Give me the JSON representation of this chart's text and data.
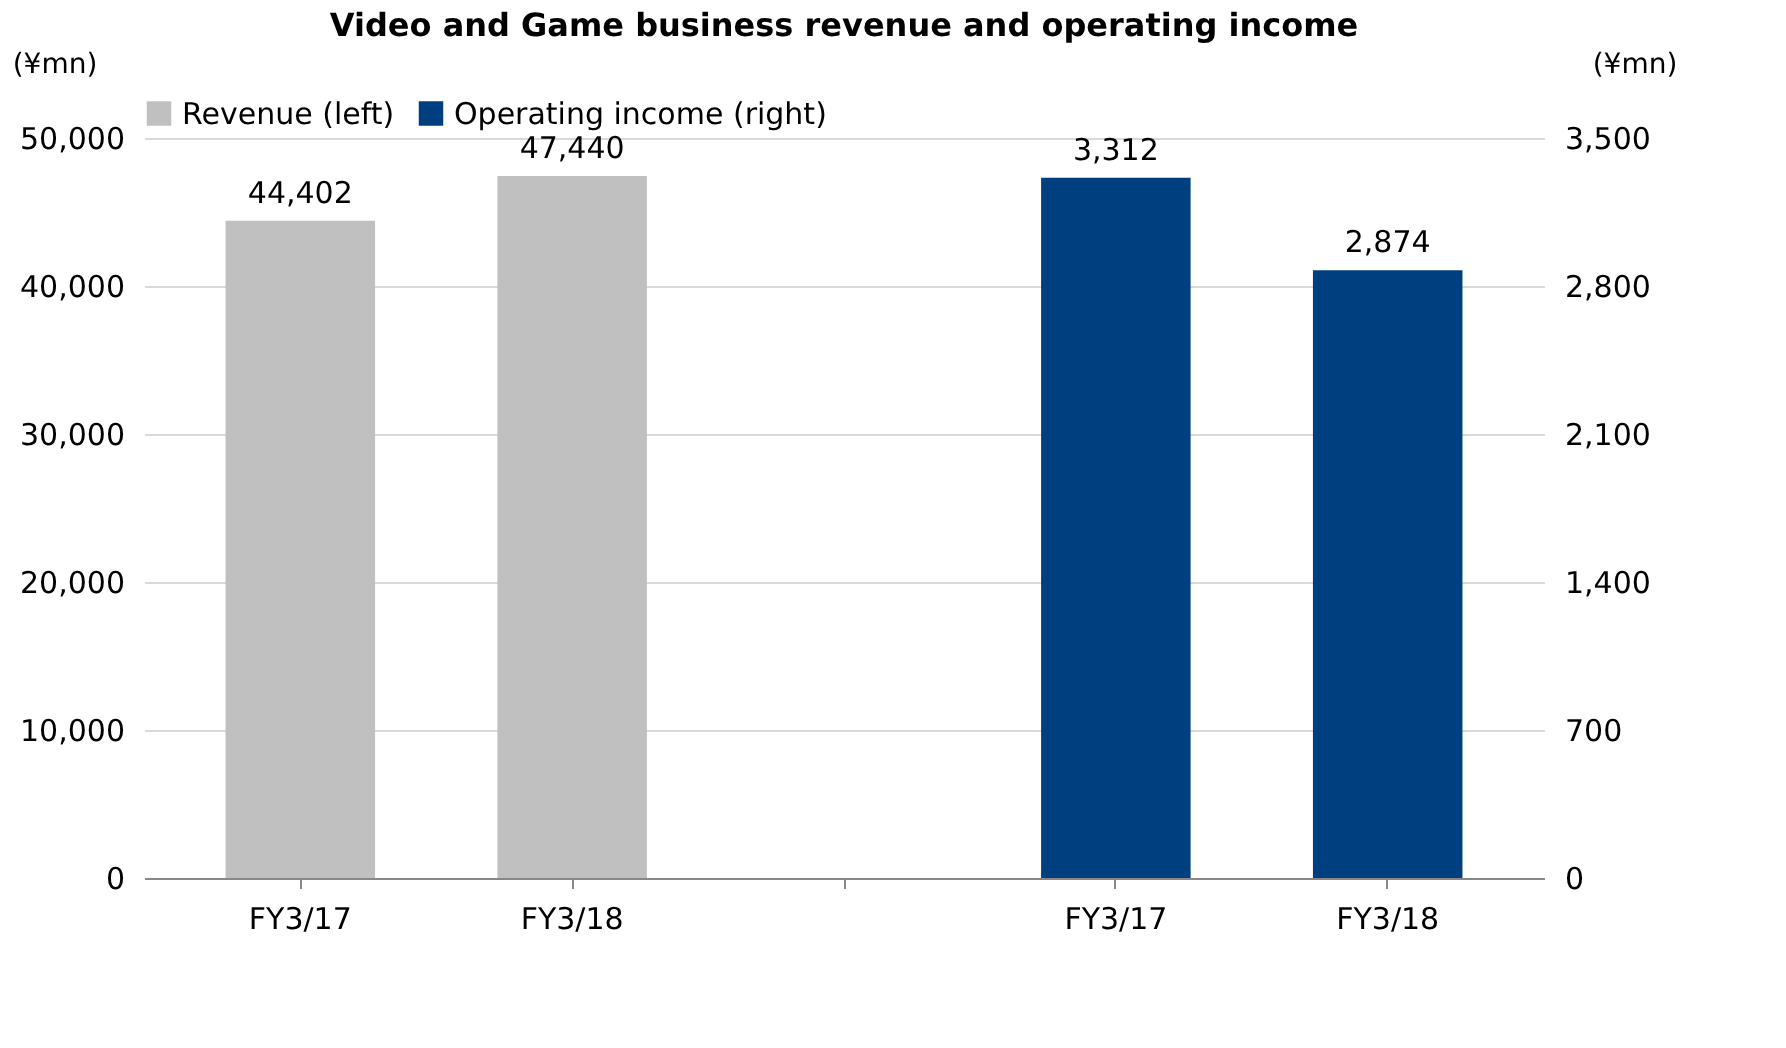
{
  "chart_data": {
    "type": "bar",
    "title": "Video and Game business revenue and operating income",
    "ylabel": "(¥mn)",
    "y2label": "(¥mn)",
    "categories": [
      "FY3/17",
      "FY3/18",
      null,
      "FY3/17",
      "FY3/18"
    ],
    "series": [
      {
        "name": "Revenue (left)",
        "color": "#c0c0c0",
        "values": [
          44402,
          47440,
          null,
          null,
          null
        ],
        "value_labels": [
          "44,402",
          "47,440",
          null,
          null,
          null
        ]
      },
      {
        "name": "Operating income (right)",
        "color": "#003f7f",
        "axis": "y2",
        "values": [
          null,
          null,
          null,
          3312,
          2874
        ],
        "value_labels": [
          null,
          null,
          null,
          "3,312",
          "2,874"
        ]
      }
    ],
    "ylim": [
      0,
      50000
    ],
    "yticks": [
      0,
      {
        "value": 10000,
        "label": "10,000"
      },
      {
        "value": 20000,
        "label": "20,000"
      },
      {
        "value": 30000,
        "label": "30,000"
      },
      {
        "value": 40000,
        "label": "40,000"
      },
      {
        "value": 50000,
        "label": "50,000"
      }
    ],
    "y2lim": [
      0,
      3500
    ],
    "y2ticks": [
      0,
      700,
      {
        "value": 1400,
        "label": "1,400"
      },
      {
        "value": 2100,
        "label": "2,100"
      },
      {
        "value": 2800,
        "label": "2,800"
      },
      {
        "value": 3500,
        "label": "3,500"
      }
    ],
    "grid": "y",
    "legend": "top"
  }
}
